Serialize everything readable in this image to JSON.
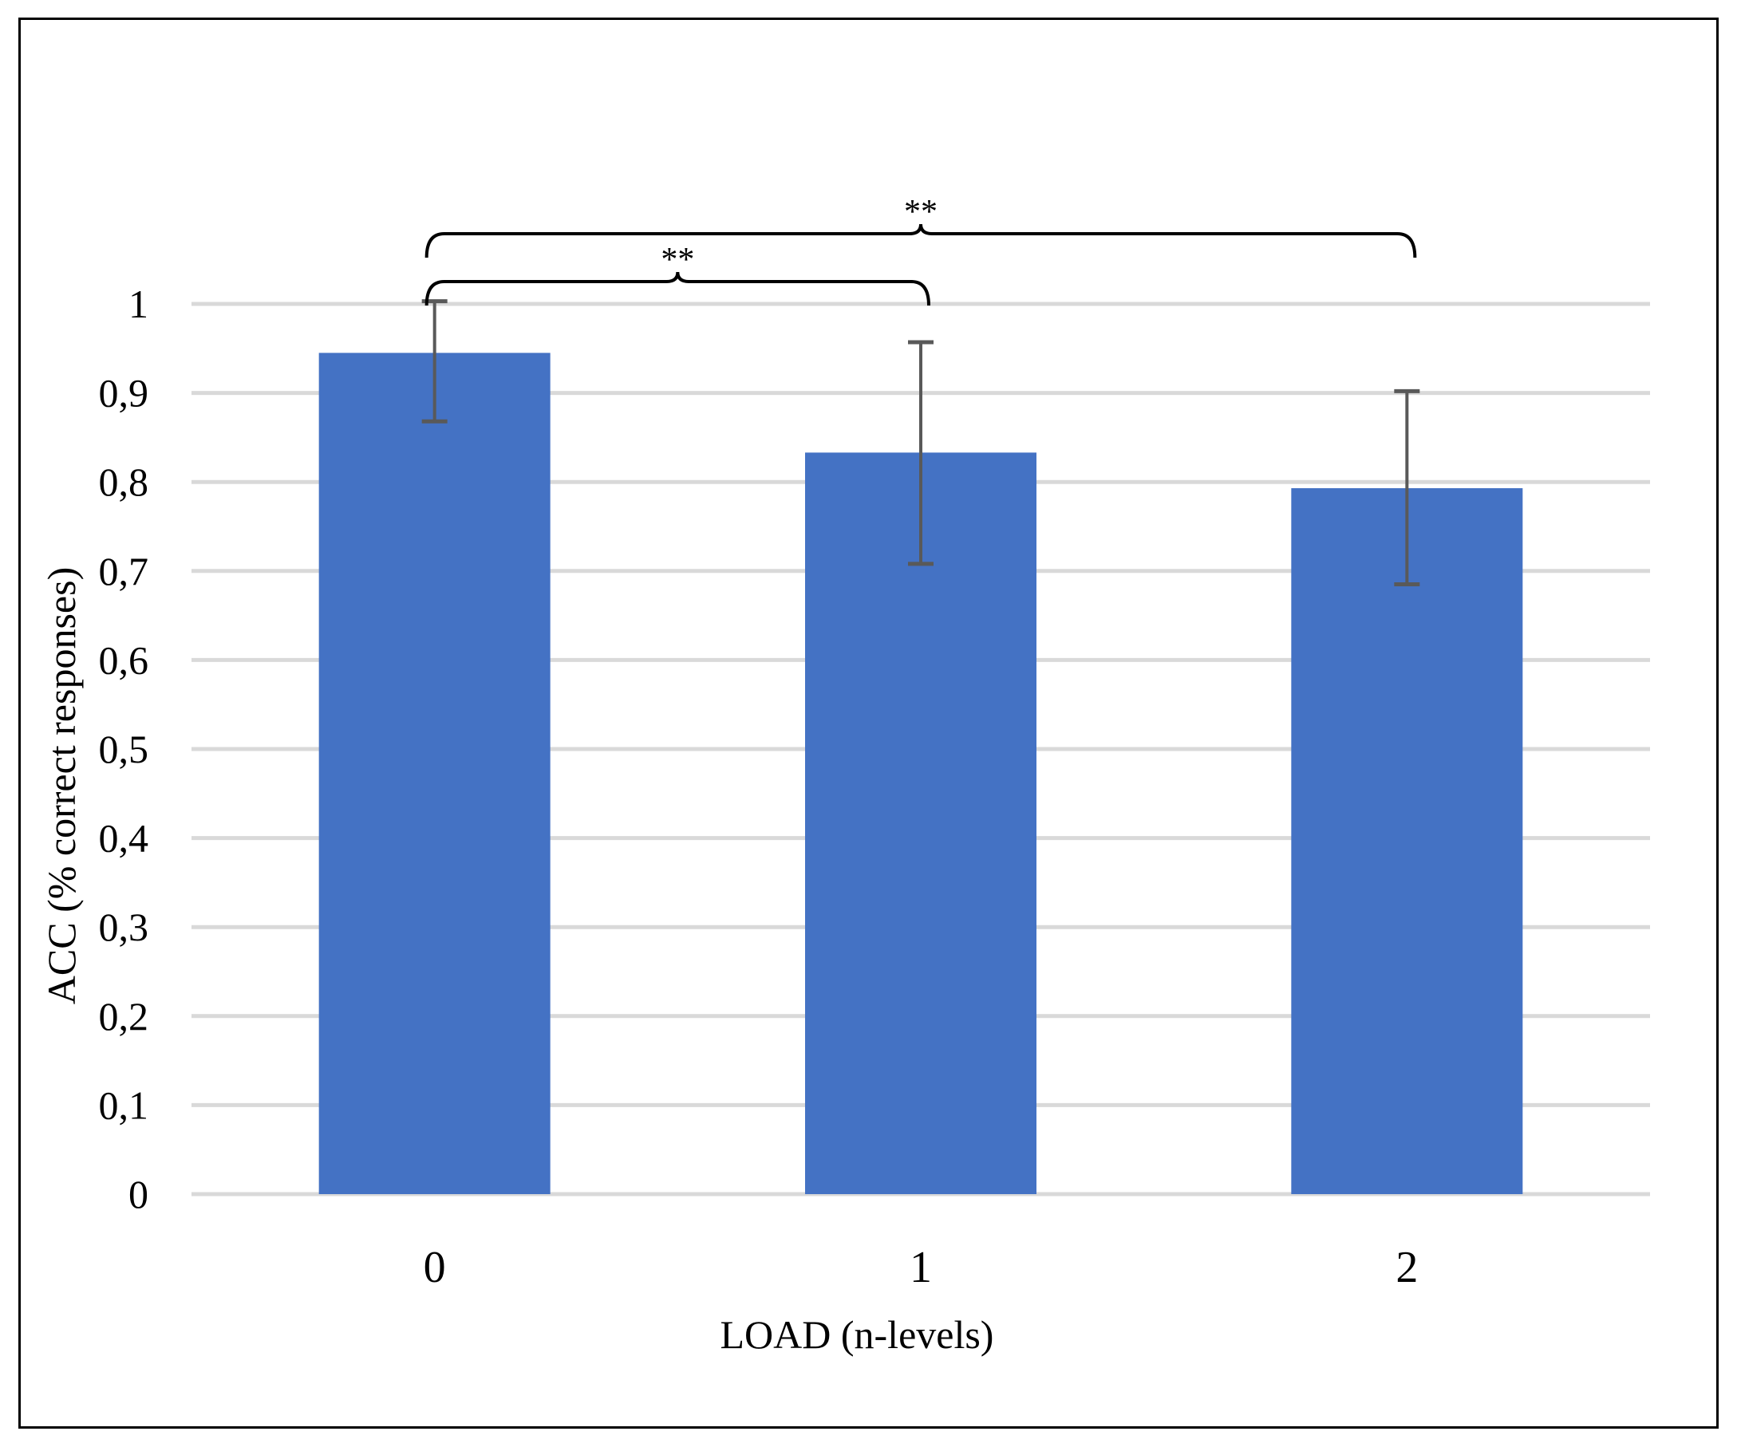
{
  "chart_data": {
    "type": "bar",
    "title": "",
    "xlabel": "LOAD (n-levels)",
    "ylabel": "ACC (% correct responses)",
    "categories": [
      "0",
      "1",
      "2"
    ],
    "series": [
      {
        "name": "",
        "values": [
          0.945,
          0.833,
          0.793
        ],
        "error": [
          [
            0.868,
            1.003
          ],
          [
            0.708,
            0.957
          ],
          [
            0.685,
            0.902
          ]
        ]
      }
    ],
    "ylim": [
      0,
      1
    ],
    "yticks": [
      0,
      0.1,
      0.2,
      0.3,
      0.4,
      0.5,
      0.6,
      0.7,
      0.8,
      0.9,
      1
    ],
    "ytick_labels": [
      "0",
      "0,1",
      "0,2",
      "0,3",
      "0,4",
      "0,5",
      "0,6",
      "0,7",
      "0,8",
      "0,9",
      "1"
    ],
    "grid": true,
    "legend": "none",
    "colors": {
      "bar": "#4472C4",
      "error_bar": "#595959",
      "grid": "#D9D9D9"
    },
    "annotations": [
      {
        "text": "**",
        "from_category": "0",
        "to_category": "1"
      },
      {
        "text": "**",
        "from_category": "0",
        "to_category": "2"
      }
    ]
  }
}
